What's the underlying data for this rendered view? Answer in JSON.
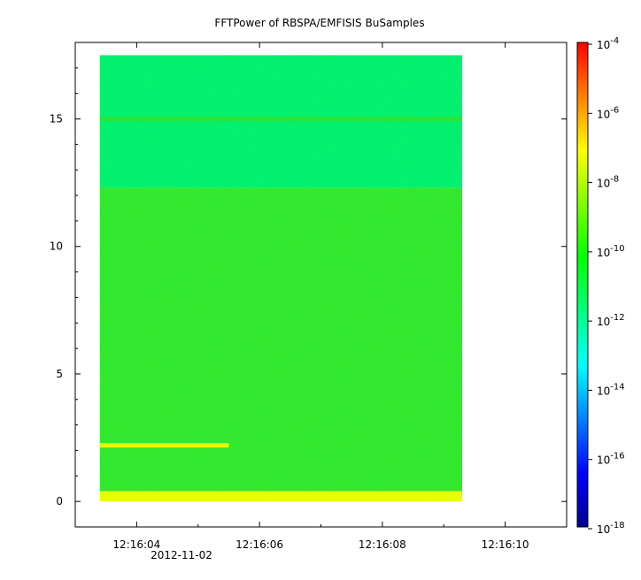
{
  "chart_data": {
    "type": "heatmap",
    "title": "FFTPower of RBSPA/EMFISIS  BuSamples",
    "xlabel": "",
    "ylabel": "",
    "x_range": [
      "12:16:03",
      "12:16:11"
    ],
    "y_range": [
      -1,
      18
    ],
    "data_extent": {
      "x": [
        "12:16:03.4",
        "12:16:09.3"
      ],
      "y": [
        0,
        17.5
      ]
    },
    "x_ticks": [
      {
        "value": "12:16:04",
        "label": "12:16:04"
      },
      {
        "value": "12:16:06",
        "label": "12:16:06"
      },
      {
        "value": "12:16:08",
        "label": "12:16:08"
      },
      {
        "value": "12:16:10",
        "label": "12:16:10"
      }
    ],
    "x_date_label": "2012-11-02",
    "y_ticks": [
      0,
      5,
      10,
      15
    ],
    "colorbar": {
      "scale": "log",
      "range": [
        1e-18,
        0.0001
      ],
      "ticks": [
        {
          "base": "10",
          "exp": "-4"
        },
        {
          "base": "10",
          "exp": "-6"
        },
        {
          "base": "10",
          "exp": "-8"
        },
        {
          "base": "10",
          "exp": "-10"
        },
        {
          "base": "10",
          "exp": "-12"
        },
        {
          "base": "10",
          "exp": "-14"
        },
        {
          "base": "10",
          "exp": "-16"
        },
        {
          "base": "10",
          "exp": "-18"
        }
      ],
      "colors": [
        "#00008f",
        "#0000ff",
        "#0080ff",
        "#00ffff",
        "#00ff80",
        "#00ff00",
        "#80ff00",
        "#ffff00",
        "#ff8000",
        "#ff0000"
      ]
    },
    "regions": [
      {
        "y_range": [
          12.3,
          17.5
        ],
        "level_exp": -12,
        "color": "#00f070"
      },
      {
        "y_range": [
          0.4,
          12.3
        ],
        "level_exp": -10,
        "color": "#30e830"
      },
      {
        "y_range": [
          0,
          0.4
        ],
        "level_exp": -8.5,
        "color": "#e8ff00"
      },
      {
        "y": 15,
        "x_range": [
          "12:16:03.4",
          "12:16:09.3"
        ],
        "level_exp": -10.5,
        "color": "#30e030"
      },
      {
        "y": 2.2,
        "x_range": [
          "12:16:03.4",
          "12:16:05.5"
        ],
        "level_exp": -8,
        "color": "#ffff00"
      }
    ]
  }
}
